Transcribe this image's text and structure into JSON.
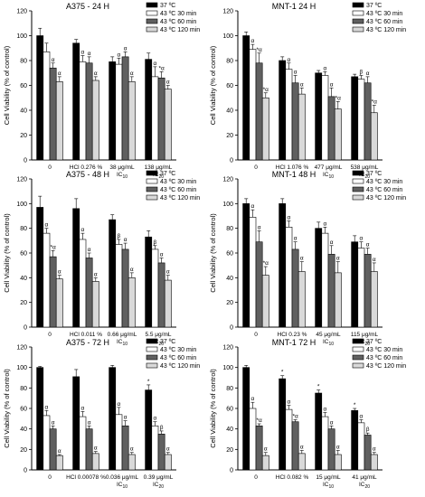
{
  "chart_data": [
    {
      "type": "bar",
      "title": "A375 - 24 H",
      "ylabel": "Cell Viability (% of control)",
      "xlabel": "",
      "ylim": [
        0,
        120
      ],
      "yticks": [
        0,
        20,
        40,
        60,
        80,
        100,
        120
      ],
      "categories": [
        "0",
        "HCl 0.276 %",
        "38 μg/mL",
        "138 μg/mL"
      ],
      "category_sublabels": [
        "",
        "",
        "IC10",
        "IC20"
      ],
      "legend_position": "top-right",
      "series": [
        {
          "name": "37 ºC",
          "values": [
            100,
            94,
            79,
            81
          ],
          "errors": [
            6,
            3,
            4,
            5
          ]
        },
        {
          "name": "43 ºC 30 min",
          "values": [
            87,
            79,
            77,
            67
          ],
          "errors": [
            7,
            5,
            5,
            8
          ]
        },
        {
          "name": "43 ºC 60 min",
          "values": [
            74,
            78,
            83,
            66
          ],
          "errors": [
            4,
            5,
            4,
            5
          ]
        },
        {
          "name": "43 ºC 120 min",
          "values": [
            63,
            64,
            63,
            57
          ],
          "errors": [
            4,
            3,
            4,
            3
          ]
        }
      ],
      "annotations": [
        [
          "",
          "",
          "",
          ""
        ],
        [
          "",
          "α",
          "α",
          "α"
        ],
        [
          "α",
          "α",
          "α",
          "*α"
        ],
        [
          "α",
          "α",
          "α",
          "α"
        ]
      ]
    },
    {
      "type": "bar",
      "title": "MNT-1 24 H",
      "ylabel": "Cell Viability (% of control)",
      "xlabel": "",
      "ylim": [
        0,
        120
      ],
      "yticks": [
        0,
        20,
        40,
        60,
        80,
        100,
        120
      ],
      "categories": [
        "0",
        "HCl 1.076 %",
        "477 μg/mL",
        "538 μg/mL"
      ],
      "category_sublabels": [
        "",
        "",
        "IC10",
        "IC20"
      ],
      "legend_position": "top-right",
      "series": [
        {
          "name": "37 ºC",
          "values": [
            100,
            80,
            70,
            67
          ],
          "errors": [
            3,
            3,
            2,
            2
          ]
        },
        {
          "name": "43 ºC 30 min",
          "values": [
            89,
            73,
            68,
            65
          ],
          "errors": [
            4,
            5,
            3,
            3
          ]
        },
        {
          "name": "43 ºC 60 min",
          "values": [
            78,
            62,
            51,
            62
          ],
          "errors": [
            8,
            6,
            7,
            5
          ]
        },
        {
          "name": "43 ºC 120 min",
          "values": [
            50,
            53,
            41,
            38
          ],
          "errors": [
            4,
            5,
            6,
            6
          ]
        }
      ],
      "annotations": [
        [
          "",
          "",
          "",
          ""
        ],
        [
          "α",
          "α",
          "α",
          "β"
        ],
        [
          "*α",
          "α",
          "α",
          "α"
        ],
        [
          "*α",
          "α",
          "*α",
          "*α"
        ]
      ]
    },
    {
      "type": "bar",
      "title": "A375 - 48 H",
      "ylabel": "Cell Viability (% of control)",
      "xlabel": "",
      "ylim": [
        0,
        120
      ],
      "yticks": [
        0,
        20,
        40,
        60,
        80,
        100,
        120
      ],
      "categories": [
        "0",
        "HCl 0.011 %",
        "0.66 μg/mL",
        "5.5 μg/mL"
      ],
      "category_sublabels": [
        "",
        "",
        "IC10",
        "IC20"
      ],
      "legend_position": "top-right",
      "series": [
        {
          "name": "37 ºC",
          "values": [
            97,
            96,
            87,
            73
          ],
          "errors": [
            9,
            8,
            4,
            5
          ]
        },
        {
          "name": "43 ºC 30 min",
          "values": [
            76,
            71,
            67,
            63
          ],
          "errors": [
            4,
            5,
            4,
            3
          ]
        },
        {
          "name": "43 ºC 60 min",
          "values": [
            57,
            56,
            63,
            52
          ],
          "errors": [
            5,
            4,
            5,
            4
          ]
        },
        {
          "name": "43 ºC 120 min",
          "values": [
            39,
            37,
            40,
            38
          ],
          "errors": [
            3,
            3,
            4,
            4
          ]
        }
      ],
      "annotations": [
        [
          "",
          "",
          "",
          ""
        ],
        [
          "α",
          "α",
          "β",
          "β"
        ],
        [
          "*α",
          "α",
          "α",
          "α"
        ],
        [
          "α",
          "α",
          "α",
          "α"
        ]
      ]
    },
    {
      "type": "bar",
      "title": "MNT-1 48 H",
      "ylabel": "Cell Viability (% of control)",
      "xlabel": "",
      "ylim": [
        0,
        120
      ],
      "yticks": [
        0,
        20,
        40,
        60,
        80,
        100,
        120
      ],
      "categories": [
        "0",
        "HCl 0.23 %",
        "45 μg/mL",
        "115 μg/mL"
      ],
      "category_sublabels": [
        "",
        "",
        "IC10",
        "IC20"
      ],
      "legend_position": "top-right",
      "series": [
        {
          "name": "37 ºC",
          "values": [
            100,
            100,
            80,
            69
          ],
          "errors": [
            4,
            4,
            5,
            5
          ]
        },
        {
          "name": "43 ºC 30 min",
          "values": [
            89,
            81,
            76,
            64
          ],
          "errors": [
            6,
            5,
            5,
            5
          ]
        },
        {
          "name": "43 ºC 60 min",
          "values": [
            69,
            63,
            59,
            59
          ],
          "errors": [
            9,
            6,
            7,
            5
          ]
        },
        {
          "name": "43 ºC 120 min",
          "values": [
            42,
            45,
            44,
            45
          ],
          "errors": [
            7,
            8,
            9,
            7
          ]
        }
      ],
      "annotations": [
        [
          "",
          "",
          "",
          ""
        ],
        [
          "α",
          "α",
          "α",
          "α"
        ],
        [
          "α",
          "α",
          "α",
          "α"
        ],
        [
          "*α",
          "α",
          "α",
          "α"
        ]
      ]
    },
    {
      "type": "bar",
      "title": "A375 - 72 H",
      "ylabel": "Cell Viability (% of control)",
      "xlabel": "",
      "ylim": [
        0,
        120
      ],
      "yticks": [
        0,
        20,
        40,
        60,
        80,
        100,
        120
      ],
      "categories": [
        "0",
        "HCl 0.00078 %",
        "0.036 μg/mL",
        "0.39 μg/mL"
      ],
      "category_sublabels": [
        "",
        "",
        "IC10",
        "IC20"
      ],
      "legend_position": "top-right",
      "series": [
        {
          "name": "37 ºC",
          "values": [
            100,
            91,
            100,
            78
          ],
          "errors": [
            1,
            7,
            2,
            5
          ]
        },
        {
          "name": "43 ºC 30 min",
          "values": [
            53,
            52,
            54,
            43
          ],
          "errors": [
            5,
            5,
            7,
            4
          ]
        },
        {
          "name": "43 ºC 60 min",
          "values": [
            40,
            40,
            43,
            35
          ],
          "errors": [
            3,
            3,
            5,
            3
          ]
        },
        {
          "name": "43 ºC 120 min",
          "values": [
            14,
            16,
            15,
            15
          ],
          "errors": [
            1,
            2,
            2,
            2
          ]
        }
      ],
      "annotations": [
        [
          "",
          "",
          "",
          "*"
        ],
        [
          "α",
          "α",
          "α",
          "α"
        ],
        [
          "α",
          "α",
          "α",
          "β"
        ],
        [
          "α",
          "α",
          "α",
          "α"
        ]
      ]
    },
    {
      "type": "bar",
      "title": "MNT-1 72 H",
      "ylabel": "Cell Viability (% of control)",
      "xlabel": "",
      "ylim": [
        0,
        120
      ],
      "yticks": [
        0,
        20,
        40,
        60,
        80,
        100,
        120
      ],
      "categories": [
        "0",
        "HCl 0.082 %",
        "15 μg/mL",
        "41 μg/mL"
      ],
      "category_sublabels": [
        "",
        "",
        "IC10",
        "IC20"
      ],
      "legend_position": "top-right",
      "series": [
        {
          "name": "37 ºC",
          "values": [
            100,
            89,
            75,
            58
          ],
          "errors": [
            2,
            3,
            3,
            2
          ]
        },
        {
          "name": "43 ºC 30 min",
          "values": [
            60,
            59,
            52,
            46
          ],
          "errors": [
            6,
            4,
            4,
            3
          ]
        },
        {
          "name": "43 ºC 60 min",
          "values": [
            43,
            47,
            40,
            34
          ],
          "errors": [
            2,
            2,
            3,
            2
          ]
        },
        {
          "name": "43 ºC 120 min",
          "values": [
            14,
            16,
            15,
            15
          ],
          "errors": [
            3,
            3,
            4,
            2
          ]
        }
      ],
      "annotations": [
        [
          "",
          "*",
          "*",
          "*"
        ],
        [
          "α",
          "α",
          "α",
          "α"
        ],
        [
          "*α",
          "*α",
          "α",
          "β"
        ],
        [
          "α",
          "α",
          "α",
          "α"
        ]
      ]
    }
  ]
}
